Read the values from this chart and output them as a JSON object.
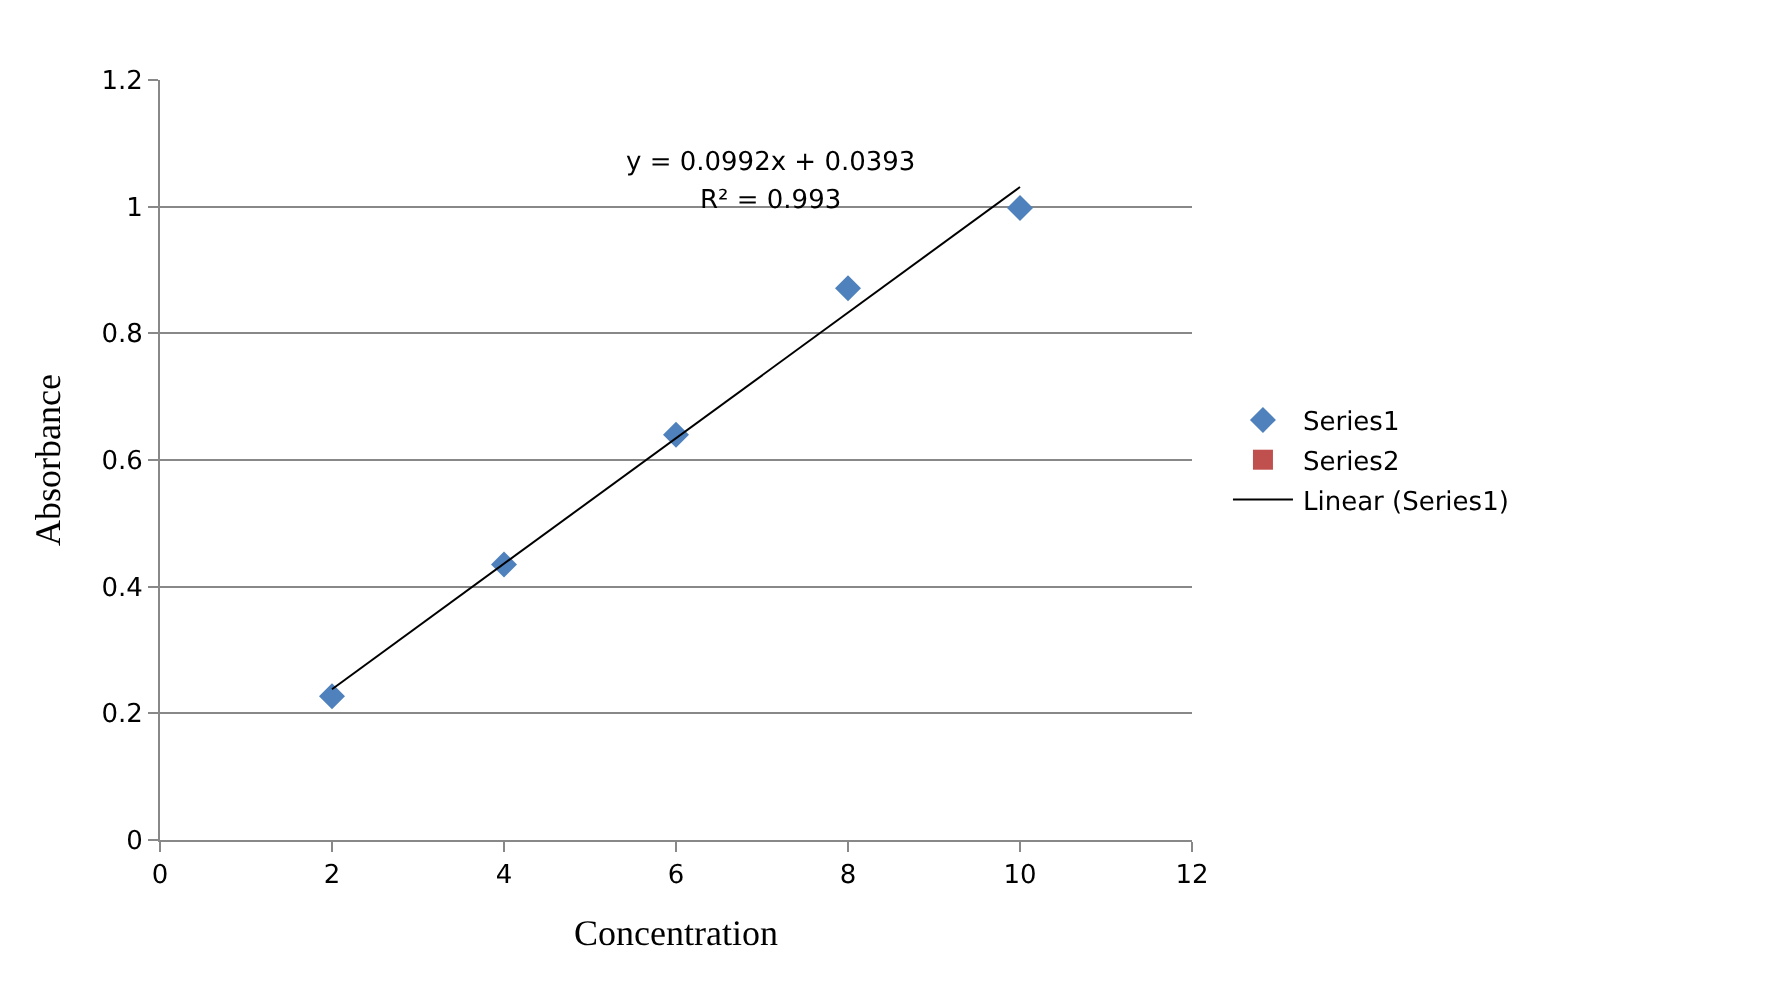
{
  "chart_data": {
    "type": "scatter",
    "xlabel": "Concentration",
    "ylabel": "Absorbance",
    "x": [
      2,
      4,
      6,
      8,
      10
    ],
    "series": [
      {
        "name": "Series1",
        "color": "#4f81bd",
        "marker": "diamond",
        "values": [
          0.227,
          0.435,
          0.64,
          0.871,
          0.998
        ]
      },
      {
        "name": "Series2",
        "color": "#c0504d",
        "marker": "square",
        "values": [
          null,
          null,
          null,
          null,
          null
        ]
      },
      {
        "name": "Linear (Series1)",
        "type": "line",
        "color": "#000000",
        "x": [
          2,
          10
        ],
        "values": [
          0.238,
          1.031
        ],
        "marker": "none",
        "line_style": "solid"
      }
    ],
    "annotations": [
      "y = 0.0992x + 0.0393",
      "R² = 0.993"
    ],
    "xlim": [
      0,
      12
    ],
    "xticks": [
      0,
      2,
      4,
      6,
      8,
      10,
      12
    ],
    "ylim": [
      0,
      1.2
    ],
    "yticks": [
      0,
      0.2,
      0.4,
      0.6,
      0.8,
      1,
      1.2
    ],
    "grid": "y",
    "legend": "right"
  }
}
